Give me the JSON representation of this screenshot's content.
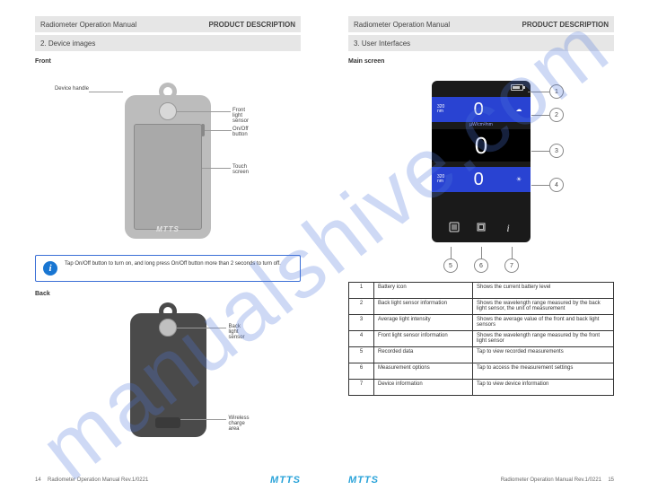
{
  "watermark": "manualshive.com",
  "left_page": {
    "header1_left": "Radiometer Operation Manual",
    "header1_right": "PRODUCT DESCRIPTION",
    "header2": "2. Device images",
    "front": {
      "title": "Front",
      "label_handle": "Device handle",
      "label_sensor": "Front light sensor",
      "label_power": "On/Off button",
      "label_screen": "Touch screen",
      "logo": "MTTS"
    },
    "info_note": "Tap On/Off button to turn on, and long press On/Off button more than 2 seconds to turn off.",
    "back": {
      "title": "Back",
      "label_sensor": "Back light sensor",
      "label_charge": "Wireless charge area"
    },
    "footer_page": "14",
    "footer_manual": "Radiometer Operation Manual Rev.1/0221",
    "footer_logo": "MTTS"
  },
  "right_page": {
    "header1_left": "Radiometer Operation Manual",
    "header1_right": "PRODUCT DESCRIPTION",
    "header2": "3. User Interfaces",
    "ui": {
      "title": "Main screen",
      "battery_label": "1",
      "row_top_nm": "320\nnm",
      "row_top_val": "0",
      "row_mid_label": "µW/cm²/nm",
      "row_mid_val": "0",
      "row_bot_nm": "320\nnm",
      "row_bot_val": "0",
      "callouts": {
        "c1": "1",
        "c2": "2",
        "c3": "3",
        "c4": "4",
        "c5": "5",
        "c6": "6",
        "c7": "7"
      }
    },
    "table": {
      "rows": [
        [
          "1",
          "Battery icon",
          "Shows the current battery level"
        ],
        [
          "2",
          "Back light sensor information",
          "Shows the wavelength range measured by the back light sensor, the unit of measurement"
        ],
        [
          "3",
          "Average light intensity",
          "Shows the average value of the front and back light sensors"
        ],
        [
          "4",
          "Front light sensor information",
          "Shows the wavelength range measured by the front light sensor"
        ],
        [
          "5",
          "Recorded data",
          "Tap to view recorded measurements"
        ],
        [
          "6",
          "Measurement options",
          "Tap to access the measurement settings"
        ],
        [
          "7",
          "Device information",
          "Tap to view device information"
        ]
      ]
    },
    "footer_logo": "MTTS",
    "footer_manual": "Radiometer Operation Manual Rev.1/0221",
    "footer_page": "15"
  }
}
